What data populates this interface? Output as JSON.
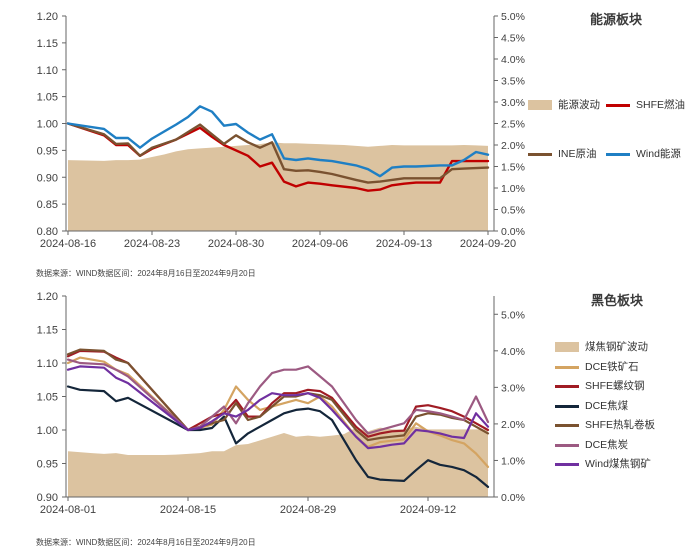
{
  "source_notes": {
    "top": "数据来源：WIND数据区间：2024年8月16日至2024年9月20日",
    "bottom": "数据来源：WIND数据区间：2024年8月16日至2024年9月20日"
  },
  "chart_data": [
    {
      "type": "line",
      "title": "能源板块",
      "y_left": {
        "min": 0.8,
        "max": 1.2,
        "ticks": [
          "0.80",
          "0.85",
          "0.90",
          "0.95",
          "1.00",
          "1.05",
          "1.10",
          "1.15",
          "1.20"
        ]
      },
      "y_right": {
        "min": 0,
        "max": 5,
        "ticks": [
          "0.0%",
          "0.5%",
          "1.0%",
          "1.5%",
          "2.0%",
          "2.5%",
          "3.0%",
          "3.5%",
          "4.0%",
          "4.5%",
          "5.0%"
        ]
      },
      "x_domain": [
        0,
        35
      ],
      "x_ticks": [
        {
          "x": 0,
          "label": "2024-08-16"
        },
        {
          "x": 7,
          "label": "2024-08-23"
        },
        {
          "x": 14,
          "label": "2024-08-30"
        },
        {
          "x": 21,
          "label": "2024-09-06"
        },
        {
          "x": 28,
          "label": "2024-09-13"
        },
        {
          "x": 35,
          "label": "2024-09-20"
        }
      ],
      "area": {
        "name": "能源波动",
        "axis": "right",
        "color": "#dcc3a0",
        "x": [
          0,
          3,
          4,
          5,
          6,
          7,
          8,
          9,
          10,
          11,
          12,
          13,
          14,
          15,
          16,
          17,
          18,
          19,
          20,
          21,
          22,
          23,
          24,
          25,
          26,
          27,
          28,
          29,
          30,
          31,
          32,
          33,
          34,
          35
        ],
        "values": [
          1.65,
          1.63,
          1.65,
          1.65,
          1.66,
          1.72,
          1.78,
          1.85,
          1.9,
          1.92,
          1.94,
          1.96,
          1.98,
          2.0,
          2.02,
          2.06,
          2.04,
          2.04,
          2.03,
          2.02,
          2.01,
          2.0,
          1.98,
          1.96,
          1.98,
          2.0,
          1.99,
          1.99,
          1.99,
          1.99,
          1.99,
          2.0,
          1.99,
          1.98
        ]
      },
      "series": [
        {
          "name": "SHFE燃油",
          "color": "#c00000",
          "width": 2.4,
          "x": [
            0,
            3,
            4,
            5,
            6,
            7,
            9,
            11,
            12,
            13,
            15,
            16,
            17,
            18,
            19,
            20,
            21,
            22,
            24,
            25,
            26,
            27,
            28,
            29,
            31,
            32,
            33,
            34,
            35
          ],
          "values": [
            1.0,
            0.978,
            0.96,
            0.96,
            0.94,
            0.953,
            0.97,
            0.992,
            0.975,
            0.96,
            0.94,
            0.92,
            0.927,
            0.892,
            0.883,
            0.89,
            0.888,
            0.885,
            0.88,
            0.875,
            0.877,
            0.885,
            0.888,
            0.89,
            0.89,
            0.93,
            0.93,
            0.93,
            0.93
          ]
        },
        {
          "name": "INE原油",
          "color": "#7a5230",
          "width": 2.4,
          "x": [
            0,
            3,
            4,
            5,
            6,
            7,
            9,
            11,
            12,
            13,
            14,
            15,
            16,
            17,
            18,
            19,
            20,
            21,
            22,
            24,
            25,
            26,
            27,
            28,
            29,
            31,
            32,
            33,
            34,
            35
          ],
          "values": [
            1.0,
            0.98,
            0.962,
            0.963,
            0.94,
            0.955,
            0.97,
            0.998,
            0.98,
            0.962,
            0.978,
            0.965,
            0.955,
            0.965,
            0.915,
            0.912,
            0.913,
            0.91,
            0.906,
            0.895,
            0.89,
            0.892,
            0.895,
            0.898,
            0.898,
            0.898,
            0.915,
            0.916,
            0.917,
            0.918
          ]
        },
        {
          "name": "Wind能源",
          "color": "#1f7fc4",
          "width": 2.4,
          "x": [
            0,
            3,
            4,
            5,
            6,
            7,
            9,
            10,
            11,
            12,
            13,
            14,
            15,
            16,
            17,
            18,
            19,
            20,
            21,
            22,
            24,
            25,
            26,
            27,
            28,
            29,
            31,
            32,
            33,
            34,
            35
          ],
          "values": [
            1.0,
            0.99,
            0.973,
            0.973,
            0.955,
            0.972,
            0.998,
            1.012,
            1.032,
            1.022,
            0.996,
            0.999,
            0.983,
            0.97,
            0.98,
            0.935,
            0.932,
            0.935,
            0.932,
            0.93,
            0.922,
            0.915,
            0.902,
            0.918,
            0.92,
            0.92,
            0.922,
            0.922,
            0.932,
            0.947,
            0.942
          ]
        }
      ],
      "legend": [
        "能源波动",
        "SHFE燃油",
        "INE原油",
        "Wind能源"
      ]
    },
    {
      "type": "line",
      "title": "黑色板块",
      "y_left": {
        "min": 0.9,
        "max": 1.2,
        "ticks": [
          "0.90",
          "0.95",
          "1.00",
          "1.05",
          "1.10",
          "1.15",
          "1.20"
        ]
      },
      "y_right": {
        "min": 0,
        "max": 5.5,
        "ticks": [
          "0.0%",
          "1.0%",
          "2.0%",
          "3.0%",
          "4.0%",
          "5.0%"
        ]
      },
      "x_domain": [
        0,
        35
      ],
      "x_ticks": [
        {
          "x": 0,
          "label": "2024-08-01"
        },
        {
          "x": 10,
          "label": "2024-08-15"
        },
        {
          "x": 20,
          "label": "2024-08-29"
        },
        {
          "x": 30,
          "label": "2024-09-12"
        }
      ],
      "area": {
        "name": "煤焦钢矿波动",
        "axis": "right",
        "color": "#dcc3a0",
        "x": [
          0,
          2,
          3,
          4,
          5,
          6,
          7,
          8,
          9,
          10,
          11,
          12,
          13,
          14,
          15,
          16,
          17,
          18,
          19,
          20,
          21,
          22,
          23,
          24,
          25,
          26,
          27,
          28,
          29,
          30,
          31,
          32,
          33,
          34,
          35
        ],
        "values": [
          1.25,
          1.2,
          1.18,
          1.2,
          1.15,
          1.15,
          1.15,
          1.15,
          1.16,
          1.18,
          1.2,
          1.25,
          1.25,
          1.42,
          1.45,
          1.55,
          1.65,
          1.75,
          1.65,
          1.68,
          1.65,
          1.68,
          1.72,
          1.9,
          1.8,
          1.9,
          1.85,
          1.85,
          1.92,
          1.85,
          1.85,
          1.85,
          1.85,
          1.85,
          1.85
        ]
      },
      "series": [
        {
          "name": "DCE铁矿石",
          "color": "#d4a462",
          "width": 2.2,
          "x": [
            0,
            1,
            3,
            4,
            5,
            10,
            11,
            12,
            13,
            14,
            15,
            16,
            18,
            19,
            20,
            21,
            22,
            24,
            25,
            26,
            27,
            28,
            29,
            30,
            31,
            32,
            33,
            34,
            35
          ],
          "values": [
            1.1,
            1.108,
            1.102,
            1.09,
            1.083,
            1.0,
            1.003,
            1.008,
            1.03,
            1.065,
            1.045,
            1.03,
            1.04,
            1.045,
            1.04,
            1.05,
            1.035,
            0.99,
            0.975,
            0.982,
            0.984,
            0.986,
            1.01,
            0.998,
            0.992,
            0.985,
            0.98,
            0.965,
            0.945
          ]
        },
        {
          "name": "SHFE螺纹钢",
          "color": "#a01c24",
          "width": 2.2,
          "x": [
            0,
            1,
            3,
            4,
            5,
            10,
            11,
            12,
            13,
            14,
            15,
            16,
            17,
            18,
            19,
            20,
            21,
            22,
            24,
            25,
            26,
            27,
            28,
            29,
            30,
            31,
            32,
            33,
            34,
            35
          ],
          "values": [
            1.11,
            1.118,
            1.117,
            1.108,
            1.1,
            1.0,
            1.01,
            1.02,
            1.025,
            1.045,
            1.02,
            1.02,
            1.04,
            1.055,
            1.055,
            1.06,
            1.058,
            1.048,
            1.005,
            0.99,
            0.995,
            0.998,
            0.999,
            1.035,
            1.037,
            1.033,
            1.028,
            1.02,
            1.01,
            1.0
          ]
        },
        {
          "name": "DCE焦煤",
          "color": "#14263a",
          "width": 2.2,
          "x": [
            0,
            1,
            3,
            4,
            5,
            10,
            11,
            12,
            13,
            14,
            15,
            16,
            17,
            18,
            19,
            20,
            21,
            22,
            24,
            25,
            26,
            27,
            28,
            29,
            30,
            31,
            32,
            33,
            34,
            35
          ],
          "values": [
            1.065,
            1.06,
            1.058,
            1.043,
            1.048,
            1.0,
            1.0,
            1.003,
            1.02,
            0.98,
            0.995,
            1.005,
            1.015,
            1.025,
            1.03,
            1.032,
            1.028,
            1.015,
            0.955,
            0.93,
            0.926,
            0.925,
            0.924,
            0.94,
            0.955,
            0.948,
            0.945,
            0.94,
            0.93,
            0.915
          ]
        },
        {
          "name": "SHFE热轧卷板",
          "color": "#7a5230",
          "width": 2.2,
          "x": [
            0,
            1,
            3,
            4,
            5,
            10,
            11,
            12,
            13,
            14,
            15,
            16,
            17,
            18,
            19,
            20,
            21,
            22,
            24,
            25,
            26,
            27,
            28,
            29,
            30,
            31,
            32,
            33,
            34,
            35
          ],
          "values": [
            1.113,
            1.12,
            1.118,
            1.105,
            1.1,
            1.0,
            1.005,
            1.01,
            1.015,
            1.04,
            1.015,
            1.02,
            1.035,
            1.05,
            1.05,
            1.055,
            1.052,
            1.045,
            1.0,
            0.985,
            0.988,
            0.99,
            0.992,
            1.02,
            1.025,
            1.023,
            1.018,
            1.015,
            1.005,
            0.995
          ]
        },
        {
          "name": "DCE焦炭",
          "color": "#9c5a82",
          "width": 2.2,
          "x": [
            0,
            1,
            3,
            4,
            5,
            10,
            11,
            12,
            13,
            14,
            15,
            16,
            17,
            18,
            19,
            20,
            21,
            22,
            24,
            25,
            26,
            27,
            28,
            29,
            30,
            31,
            32,
            33,
            34,
            35
          ],
          "values": [
            1.105,
            1.1,
            1.098,
            1.09,
            1.08,
            1.0,
            1.005,
            1.02,
            1.035,
            1.01,
            1.04,
            1.065,
            1.085,
            1.09,
            1.09,
            1.095,
            1.08,
            1.065,
            1.015,
            0.995,
            1.0,
            1.005,
            1.01,
            1.03,
            1.028,
            1.025,
            1.02,
            1.015,
            1.05,
            1.012
          ]
        },
        {
          "name": "Wind煤焦钢矿",
          "color": "#7030a0",
          "width": 2.2,
          "x": [
            0,
            1,
            3,
            4,
            5,
            10,
            11,
            12,
            13,
            14,
            15,
            16,
            17,
            18,
            19,
            20,
            21,
            22,
            24,
            25,
            26,
            27,
            28,
            29,
            30,
            31,
            32,
            33,
            34,
            35
          ],
          "values": [
            1.09,
            1.095,
            1.093,
            1.078,
            1.07,
            1.0,
            1.003,
            1.013,
            1.025,
            1.02,
            1.03,
            1.045,
            1.055,
            1.052,
            1.052,
            1.055,
            1.048,
            1.03,
            0.99,
            0.973,
            0.975,
            0.978,
            0.98,
            1.0,
            0.998,
            0.995,
            0.99,
            0.988,
            1.025,
            1.005
          ]
        }
      ],
      "legend": [
        "煤焦钢矿波动",
        "DCE铁矿石",
        "SHFE螺纹钢",
        "DCE焦煤",
        "SHFE热轧卷板",
        "DCE焦炭",
        "Wind煤焦钢矿"
      ]
    }
  ]
}
